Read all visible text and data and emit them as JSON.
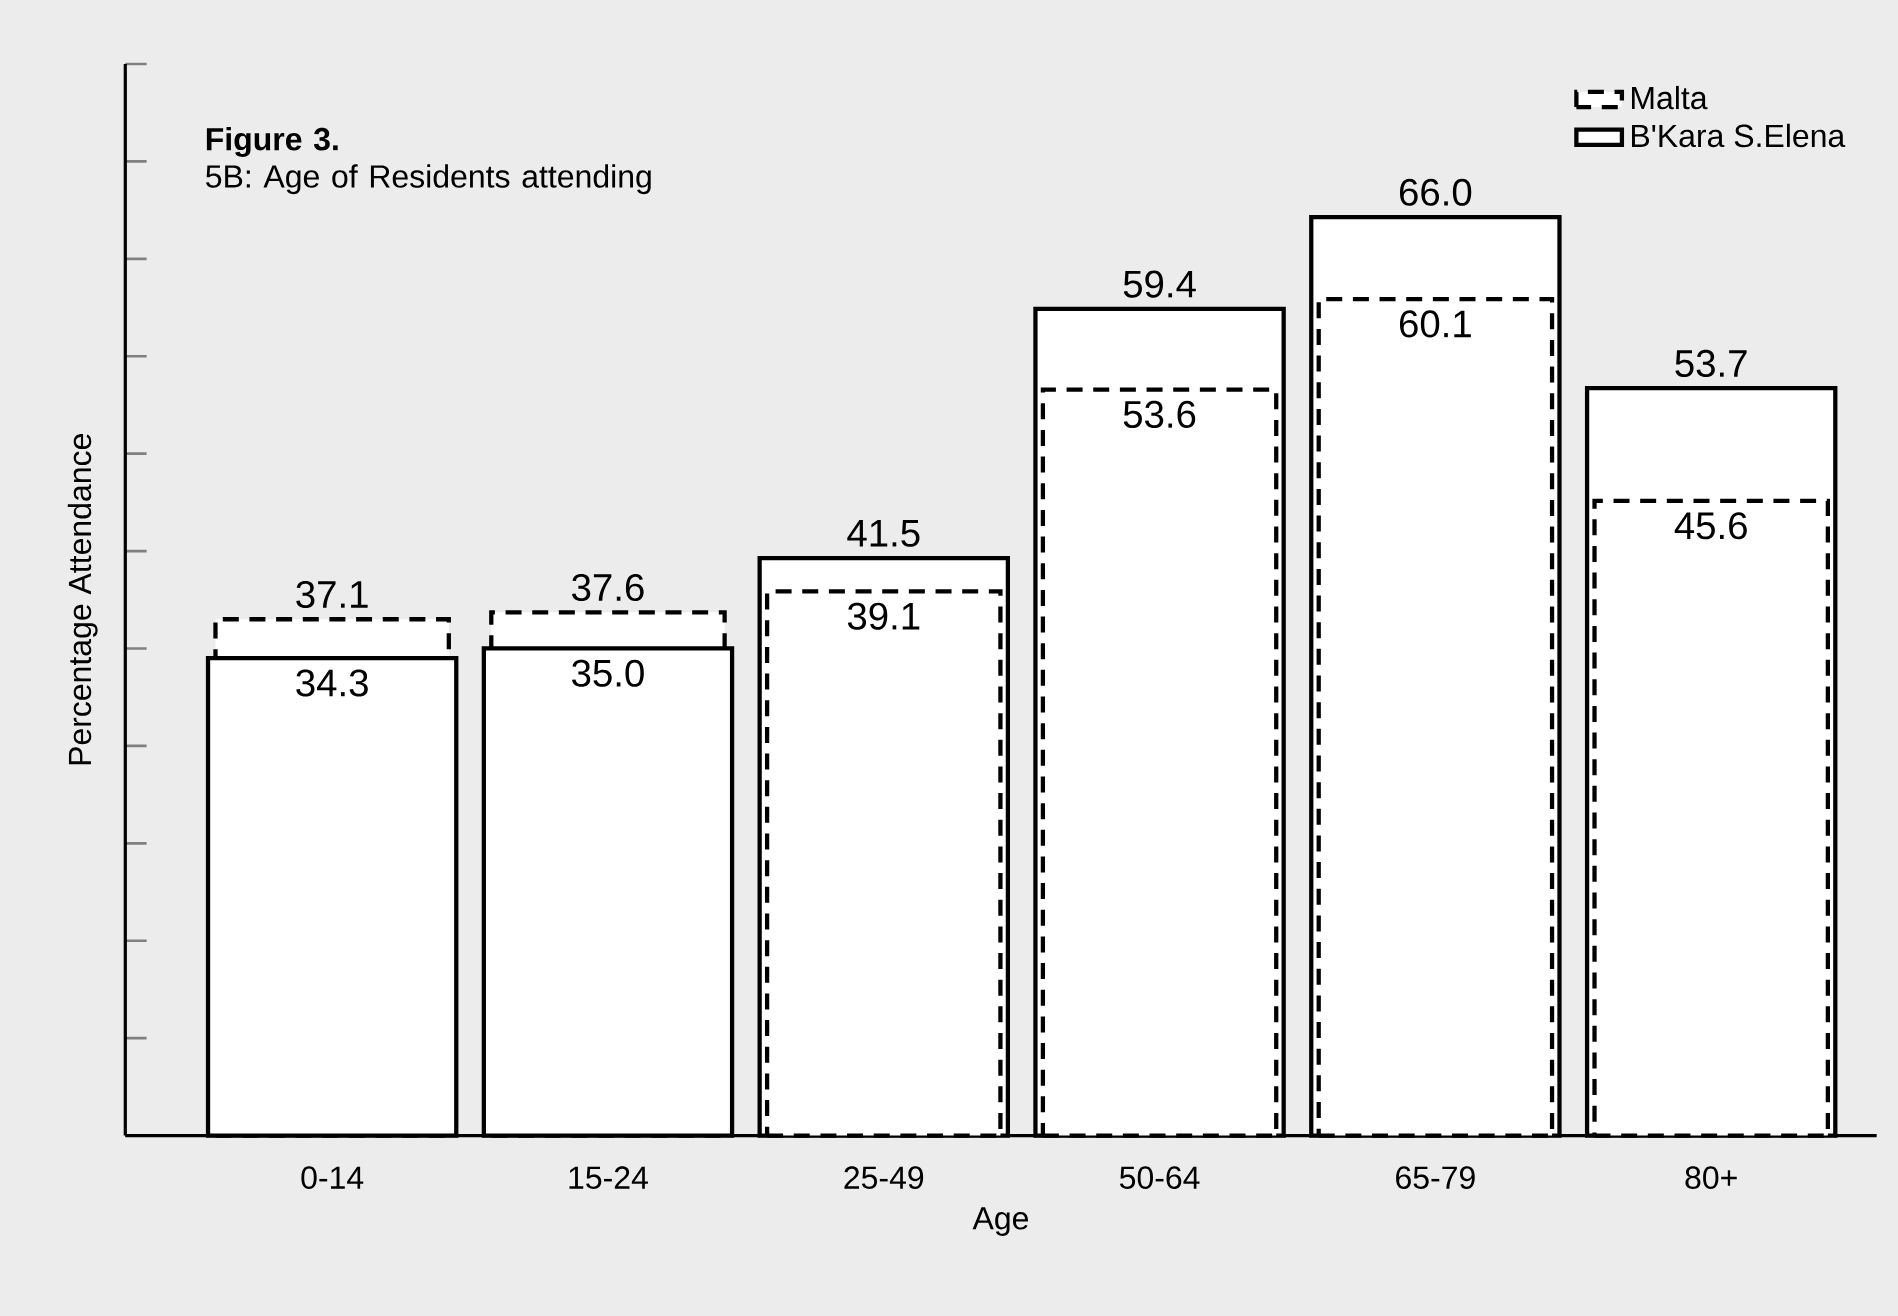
{
  "chart_data": {
    "type": "bar",
    "title": "**Figure 3.**",
    "subtitle": "5B: Age of Residents attending",
    "xlabel": "Age",
    "ylabel": "Percentage Attendance",
    "categories": [
      "0-14",
      "15-24",
      "25-49",
      "50-64",
      "65-79",
      "80+"
    ],
    "series": [
      {
        "name": "Malta",
        "color": "#000000",
        "line_style": "dashed",
        "values": [
          37.1,
          37.6,
          39.1,
          53.6,
          60.1,
          45.6
        ],
        "value_labels": [
          "37.1",
          "37.6",
          "39.1",
          "53.6",
          "60.1",
          "45.6"
        ]
      },
      {
        "name": "B'Kara S.Elena",
        "color": "#000000",
        "line_style": "solid",
        "values": [
          34.3,
          35.0,
          41.5,
          59.4,
          66.0,
          53.7
        ],
        "value_labels": [
          "34.3",
          "35.0",
          "41.5",
          "59.4",
          "66.0",
          "53.7"
        ]
      }
    ],
    "ylim": [
      0,
      77
    ],
    "yticks": [
      {
        "value": 0,
        "label": null
      },
      {
        "value": 7,
        "label": null
      },
      {
        "value": 14,
        "label": null
      },
      {
        "value": 21,
        "label": null
      },
      {
        "value": 28,
        "label": null
      },
      {
        "value": 35,
        "label": null
      },
      {
        "value": 42,
        "label": null
      },
      {
        "value": 49,
        "label": null
      },
      {
        "value": 56,
        "label": null
      },
      {
        "value": 63,
        "label": null
      },
      {
        "value": 70,
        "label": null
      },
      {
        "value": 77,
        "label": null
      }
    ],
    "legend": "top right"
  }
}
